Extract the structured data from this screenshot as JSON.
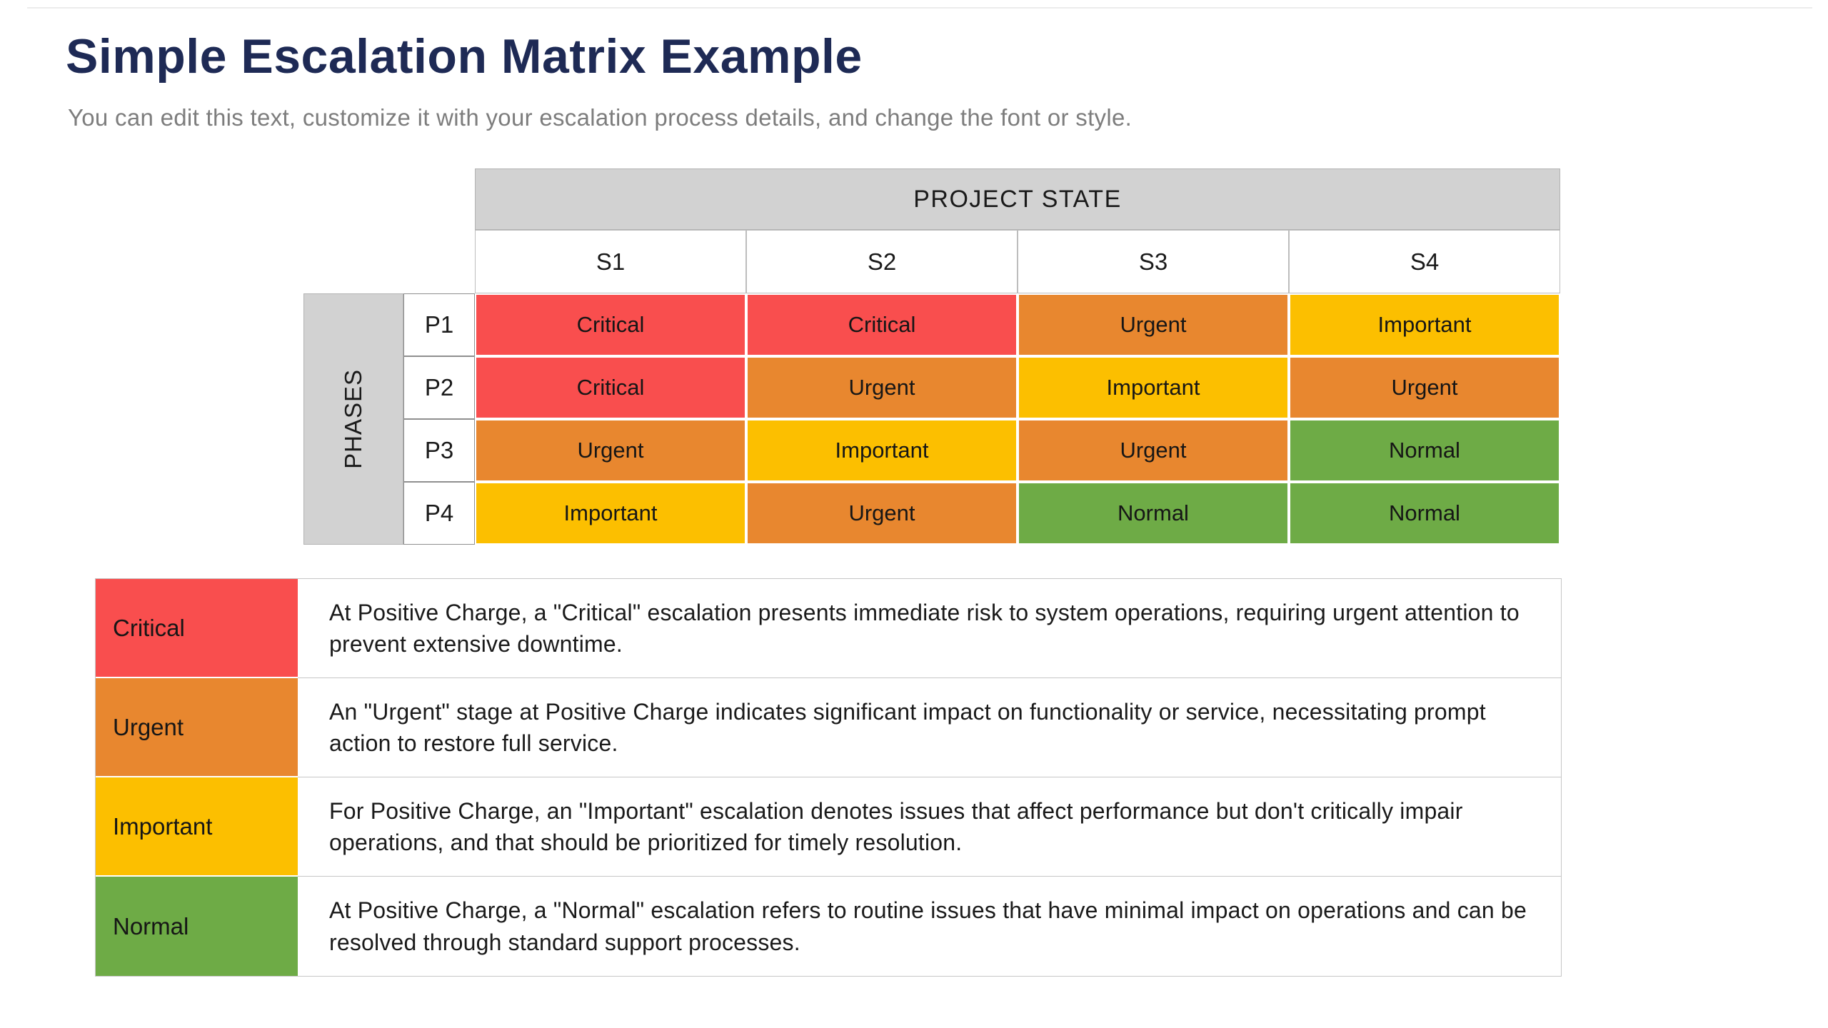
{
  "page": {
    "title": "Simple Escalation Matrix Example",
    "subtitle": "You can edit this text, customize it with your escalation process details, and change the font or style."
  },
  "matrix": {
    "column_group_header": "PROJECT STATE",
    "row_group_header": "PHASES",
    "columns": [
      "S1",
      "S2",
      "S3",
      "S4"
    ],
    "rows": [
      {
        "label": "P1",
        "cells": [
          {
            "label": "Critical",
            "level": "critical"
          },
          {
            "label": "Critical",
            "level": "critical"
          },
          {
            "label": "Urgent",
            "level": "urgent"
          },
          {
            "label": "Important",
            "level": "important"
          }
        ]
      },
      {
        "label": "P2",
        "cells": [
          {
            "label": "Critical",
            "level": "critical"
          },
          {
            "label": "Urgent",
            "level": "urgent"
          },
          {
            "label": "Important",
            "level": "important"
          },
          {
            "label": "Urgent",
            "level": "urgent"
          }
        ]
      },
      {
        "label": "P3",
        "cells": [
          {
            "label": "Urgent",
            "level": "urgent"
          },
          {
            "label": "Important",
            "level": "important"
          },
          {
            "label": "Urgent",
            "level": "urgent"
          },
          {
            "label": "Normal",
            "level": "normal"
          }
        ]
      },
      {
        "label": "P4",
        "cells": [
          {
            "label": "Important",
            "level": "important"
          },
          {
            "label": "Urgent",
            "level": "urgent"
          },
          {
            "label": "Normal",
            "level": "normal"
          },
          {
            "label": "Normal",
            "level": "normal"
          }
        ]
      }
    ]
  },
  "legend": [
    {
      "label": "Critical",
      "level": "critical",
      "description": "At Positive Charge, a \"Critical\" escalation presents immediate risk to system operations, requiring urgent attention to prevent extensive downtime."
    },
    {
      "label": "Urgent",
      "level": "urgent",
      "description": "An \"Urgent\" stage at Positive Charge indicates significant impact on functionality or service, necessitating prompt action to restore full service."
    },
    {
      "label": "Important",
      "level": "important",
      "description": "For Positive Charge, an \"Important\" escalation denotes issues that affect performance but don't critically impair operations, and that should be prioritized for timely resolution."
    },
    {
      "label": "Normal",
      "level": "normal",
      "description": "At Positive Charge, a \"Normal\" escalation refers to routine issues that have minimal impact on operations and can be resolved through standard support processes."
    }
  ],
  "colors": {
    "critical": "#F94E4E",
    "urgent": "#E8872F",
    "important": "#FCBF00",
    "normal": "#6EAB46",
    "header_fill": "#D2D2D2",
    "title": "#1E2A55"
  }
}
